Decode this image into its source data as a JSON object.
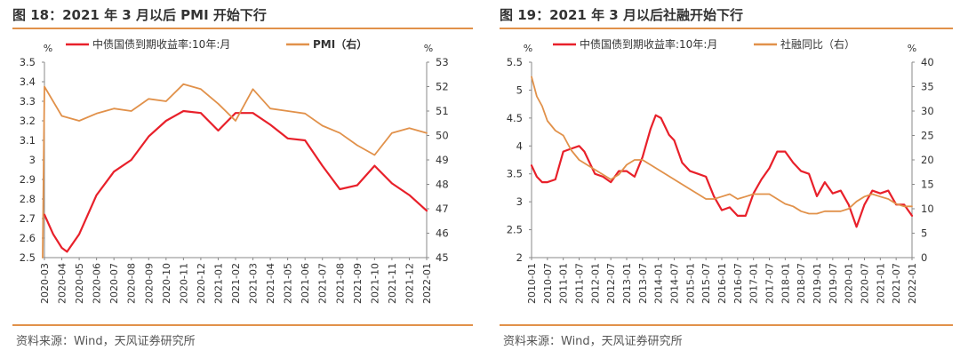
{
  "charts": [
    {
      "figure_title": "图 18：2021 年 3 月以后 PMI 开始下行",
      "source": "资料来源：Wind，天风证券研究所",
      "chart_data": {
        "type": "line",
        "title": "",
        "xlabel": "",
        "x": [
          "2020-03",
          "2020-04",
          "2020-05",
          "2020-06",
          "2020-07",
          "2020-08",
          "2020-09",
          "2020-10",
          "2020-11",
          "2020-12",
          "2021-01",
          "2021-02",
          "2021-03",
          "2021-04",
          "2021-05",
          "2021-06",
          "2021-07",
          "2021-08",
          "2021-09",
          "2021-10",
          "2021-11",
          "2021-12",
          "2022-01"
        ],
        "y_left": {
          "label": "%",
          "min": 2.5,
          "max": 3.5,
          "ticks": [
            "2.5",
            "2.6",
            "2.7",
            "2.8",
            "2.9",
            "3",
            "3.1",
            "3.2",
            "3.3",
            "3.4",
            "3.5"
          ]
        },
        "y_right": {
          "label": "%",
          "min": 45,
          "max": 53,
          "ticks": [
            "45",
            "46",
            "47",
            "48",
            "49",
            "50",
            "51",
            "52",
            "53"
          ]
        },
        "legend_position": "top",
        "grid": false,
        "series": [
          {
            "name": "中债国债到期收益率:10年:月",
            "axis": "left",
            "color": "#e8202a",
            "points": [
              [
                "2020-03",
                2.72
              ],
              [
                "2020-03.5",
                2.62
              ],
              [
                "2020-04",
                2.55
              ],
              [
                "2020-04.3",
                2.53
              ],
              [
                "2020-05",
                2.62
              ],
              [
                "2020-06",
                2.82
              ],
              [
                "2020-07",
                2.94
              ],
              [
                "2020-08",
                3.0
              ],
              [
                "2020-09",
                3.12
              ],
              [
                "2020-10",
                3.2
              ],
              [
                "2020-11",
                3.25
              ],
              [
                "2020-12",
                3.24
              ],
              [
                "2021-01",
                3.15
              ],
              [
                "2021-02",
                3.24
              ],
              [
                "2021-03",
                3.24
              ],
              [
                "2021-04",
                3.18
              ],
              [
                "2021-05",
                3.11
              ],
              [
                "2021-06",
                3.1
              ],
              [
                "2021-07",
                2.97
              ],
              [
                "2021-08",
                2.85
              ],
              [
                "2021-09",
                2.87
              ],
              [
                "2021-10",
                2.97
              ],
              [
                "2021-11",
                2.88
              ],
              [
                "2021-12",
                2.82
              ],
              [
                "2022-01",
                2.74
              ]
            ]
          },
          {
            "name": "PMI（右）",
            "axis": "right",
            "color": "#e1914a",
            "points": [
              [
                "2020-02.9",
                45.0
              ],
              [
                "2020-03",
                52.0
              ],
              [
                "2020-04",
                50.8
              ],
              [
                "2020-05",
                50.6
              ],
              [
                "2020-06",
                50.9
              ],
              [
                "2020-07",
                51.1
              ],
              [
                "2020-08",
                51.0
              ],
              [
                "2020-09",
                51.5
              ],
              [
                "2020-10",
                51.4
              ],
              [
                "2020-11",
                52.1
              ],
              [
                "2020-12",
                51.9
              ],
              [
                "2021-01",
                51.3
              ],
              [
                "2021-02",
                50.6
              ],
              [
                "2021-03",
                51.9
              ],
              [
                "2021-04",
                51.1
              ],
              [
                "2021-05",
                51.0
              ],
              [
                "2021-06",
                50.9
              ],
              [
                "2021-07",
                50.4
              ],
              [
                "2021-08",
                50.1
              ],
              [
                "2021-09",
                49.6
              ],
              [
                "2021-10",
                49.2
              ],
              [
                "2021-11",
                50.1
              ],
              [
                "2021-12",
                50.3
              ],
              [
                "2022-01",
                50.1
              ]
            ]
          }
        ]
      }
    },
    {
      "figure_title": "图 19：2021 年 3 月以后社融开始下行",
      "source": "资料来源：Wind，天风证券研究所",
      "chart_data": {
        "type": "line",
        "title": "",
        "xlabel": "",
        "x": [
          "2010-01",
          "2010-07",
          "2011-01",
          "2011-07",
          "2012-01",
          "2012-07",
          "2013-01",
          "2013-07",
          "2014-01",
          "2014-07",
          "2015-01",
          "2015-07",
          "2016-01",
          "2016-07",
          "2017-01",
          "2017-07",
          "2018-01",
          "2018-07",
          "2019-01",
          "2019-07",
          "2020-01",
          "2020-07",
          "2021-01",
          "2021-07",
          "2022-01"
        ],
        "y_left": {
          "label": "%",
          "min": 2,
          "max": 5.5,
          "ticks": [
            "2",
            "2.5",
            "3",
            "3.5",
            "4",
            "4.5",
            "5",
            "5.5"
          ]
        },
        "y_right": {
          "label": "%",
          "min": 0,
          "max": 40,
          "ticks": [
            "0",
            "5",
            "10",
            "15",
            "20",
            "25",
            "30",
            "35",
            "40"
          ]
        },
        "legend_position": "top",
        "grid": false,
        "series": [
          {
            "name": "中债国债到期收益率:10年:月",
            "axis": "left",
            "color": "#e8202a",
            "points": [
              [
                "2010-01",
                3.65
              ],
              [
                "2010-03",
                3.45
              ],
              [
                "2010-05",
                3.35
              ],
              [
                "2010-07",
                3.35
              ],
              [
                "2010-10",
                3.4
              ],
              [
                "2011-01",
                3.9
              ],
              [
                "2011-04",
                3.95
              ],
              [
                "2011-07",
                4.0
              ],
              [
                "2011-09",
                3.9
              ],
              [
                "2012-01",
                3.5
              ],
              [
                "2012-04",
                3.45
              ],
              [
                "2012-07",
                3.35
              ],
              [
                "2012-10",
                3.55
              ],
              [
                "2013-01",
                3.55
              ],
              [
                "2013-04",
                3.45
              ],
              [
                "2013-07",
                3.8
              ],
              [
                "2013-10",
                4.3
              ],
              [
                "2013-12",
                4.55
              ],
              [
                "2014-02",
                4.5
              ],
              [
                "2014-05",
                4.2
              ],
              [
                "2014-07",
                4.1
              ],
              [
                "2014-10",
                3.7
              ],
              [
                "2015-01",
                3.55
              ],
              [
                "2015-04",
                3.5
              ],
              [
                "2015-07",
                3.45
              ],
              [
                "2015-10",
                3.1
              ],
              [
                "2016-01",
                2.85
              ],
              [
                "2016-04",
                2.9
              ],
              [
                "2016-07",
                2.75
              ],
              [
                "2016-10",
                2.75
              ],
              [
                "2017-01",
                3.15
              ],
              [
                "2017-04",
                3.4
              ],
              [
                "2017-07",
                3.6
              ],
              [
                "2017-10",
                3.9
              ],
              [
                "2018-01",
                3.9
              ],
              [
                "2018-04",
                3.7
              ],
              [
                "2018-07",
                3.55
              ],
              [
                "2018-10",
                3.5
              ],
              [
                "2019-01",
                3.1
              ],
              [
                "2019-04",
                3.35
              ],
              [
                "2019-07",
                3.15
              ],
              [
                "2019-10",
                3.2
              ],
              [
                "2020-01",
                2.95
              ],
              [
                "2020-04",
                2.55
              ],
              [
                "2020-07",
                2.95
              ],
              [
                "2020-10",
                3.2
              ],
              [
                "2021-01",
                3.15
              ],
              [
                "2021-04",
                3.2
              ],
              [
                "2021-07",
                2.95
              ],
              [
                "2021-10",
                2.95
              ],
              [
                "2022-01",
                2.75
              ]
            ]
          },
          {
            "name": "社融同比（右）",
            "axis": "right",
            "color": "#e1914a",
            "points": [
              [
                "2010-01",
                37
              ],
              [
                "2010-03",
                33
              ],
              [
                "2010-05",
                31
              ],
              [
                "2010-07",
                28
              ],
              [
                "2010-10",
                26
              ],
              [
                "2011-01",
                25
              ],
              [
                "2011-04",
                22
              ],
              [
                "2011-07",
                20
              ],
              [
                "2011-10",
                19
              ],
              [
                "2012-01",
                18
              ],
              [
                "2012-04",
                17
              ],
              [
                "2012-07",
                16
              ],
              [
                "2012-10",
                17
              ],
              [
                "2013-01",
                19
              ],
              [
                "2013-04",
                20
              ],
              [
                "2013-07",
                20
              ],
              [
                "2013-10",
                19
              ],
              [
                "2014-01",
                18
              ],
              [
                "2014-04",
                17
              ],
              [
                "2014-07",
                16
              ],
              [
                "2014-10",
                15
              ],
              [
                "2015-01",
                14
              ],
              [
                "2015-04",
                13
              ],
              [
                "2015-07",
                12
              ],
              [
                "2015-10",
                12
              ],
              [
                "2016-01",
                12.5
              ],
              [
                "2016-04",
                13
              ],
              [
                "2016-07",
                12
              ],
              [
                "2016-10",
                12.5
              ],
              [
                "2017-01",
                13
              ],
              [
                "2017-04",
                13
              ],
              [
                "2017-07",
                13
              ],
              [
                "2017-10",
                12
              ],
              [
                "2018-01",
                11
              ],
              [
                "2018-04",
                10.5
              ],
              [
                "2018-07",
                9.5
              ],
              [
                "2018-10",
                9.0
              ],
              [
                "2019-01",
                9.0
              ],
              [
                "2019-04",
                9.5
              ],
              [
                "2019-07",
                9.5
              ],
              [
                "2019-10",
                9.5
              ],
              [
                "2020-01",
                10
              ],
              [
                "2020-04",
                11.5
              ],
              [
                "2020-07",
                12.5
              ],
              [
                "2020-10",
                13
              ],
              [
                "2021-01",
                12.5
              ],
              [
                "2021-04",
                12
              ],
              [
                "2021-07",
                11
              ],
              [
                "2021-10",
                10.5
              ],
              [
                "2022-01",
                10.5
              ]
            ]
          }
        ]
      }
    }
  ]
}
